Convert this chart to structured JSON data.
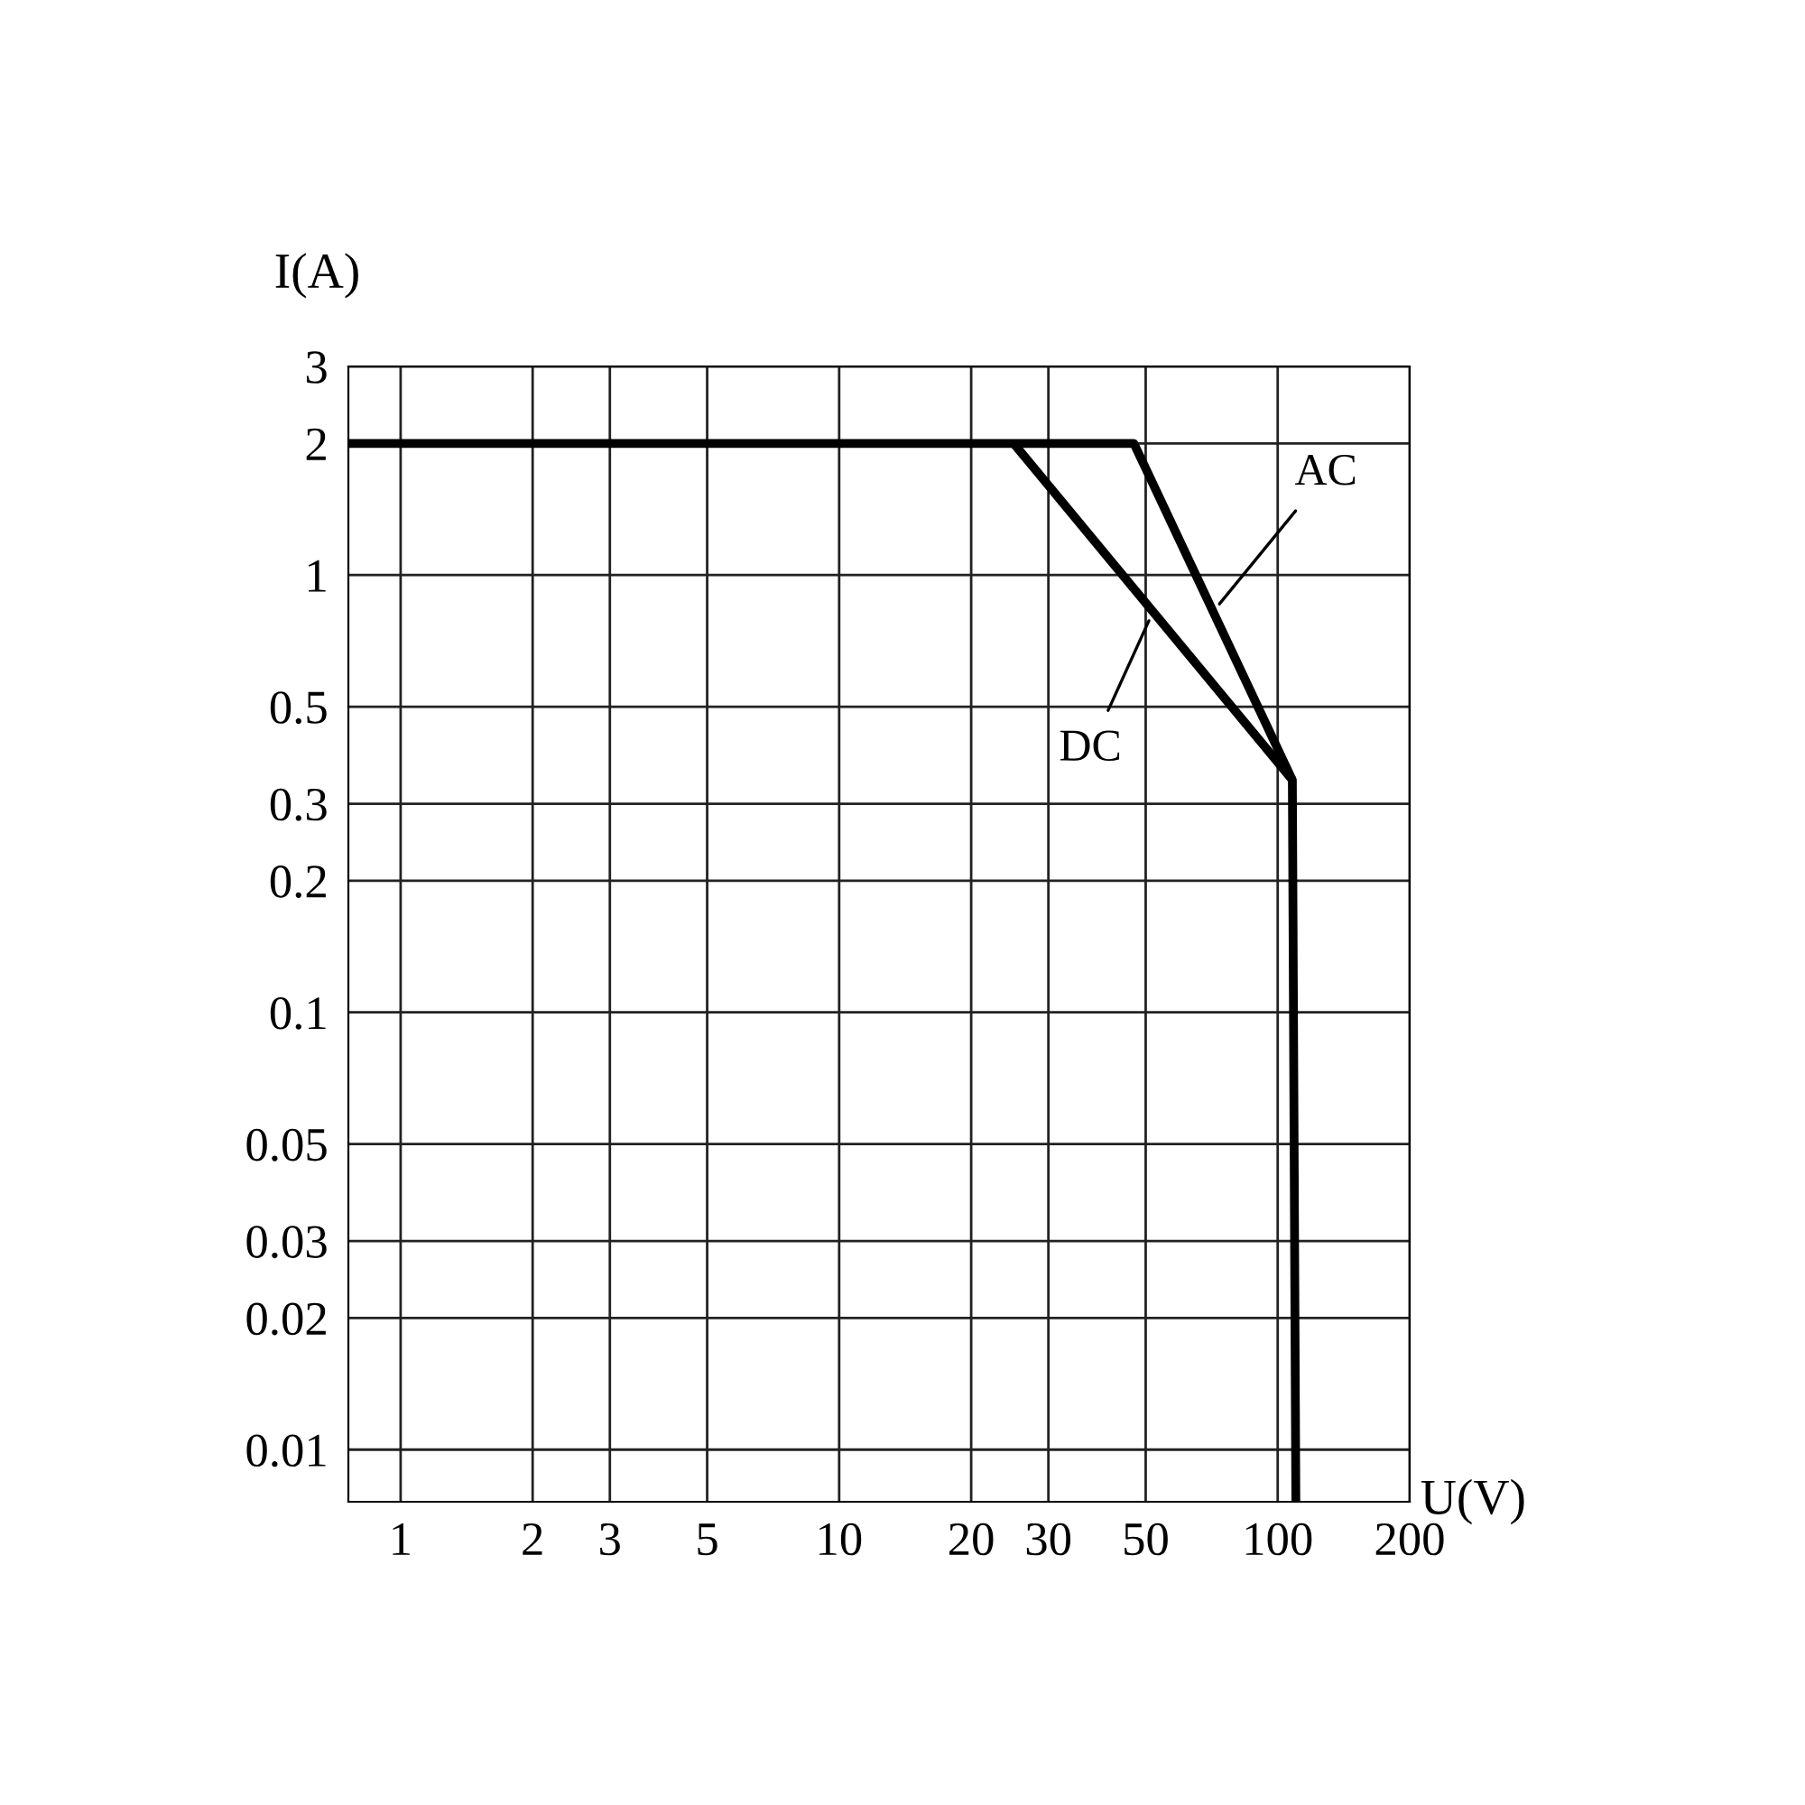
{
  "chart_data": {
    "type": "line",
    "xlabel": "U(V)",
    "ylabel": "I(A)",
    "log": "xy",
    "grid": true,
    "line_style": "solid",
    "marker": "none",
    "xlim": [
      0.76,
      200
    ],
    "xticks": [
      1,
      2,
      3,
      5,
      10,
      20,
      30,
      50,
      100,
      200
    ],
    "ylim": [
      0.0076,
      3
    ],
    "yticks": [
      0.01,
      0.02,
      0.03,
      0.05,
      0.1,
      0.2,
      0.3,
      0.5,
      1,
      2,
      3
    ],
    "series": [
      {
        "name": "AC",
        "color": "#000000",
        "x": [
          0.76,
          47,
          108,
          110
        ],
        "values": [
          2,
          2,
          0.34,
          0.0076
        ]
      },
      {
        "name": "DC",
        "color": "#000000",
        "x": [
          25,
          108
        ],
        "values": [
          2,
          0.34
        ]
      }
    ]
  }
}
